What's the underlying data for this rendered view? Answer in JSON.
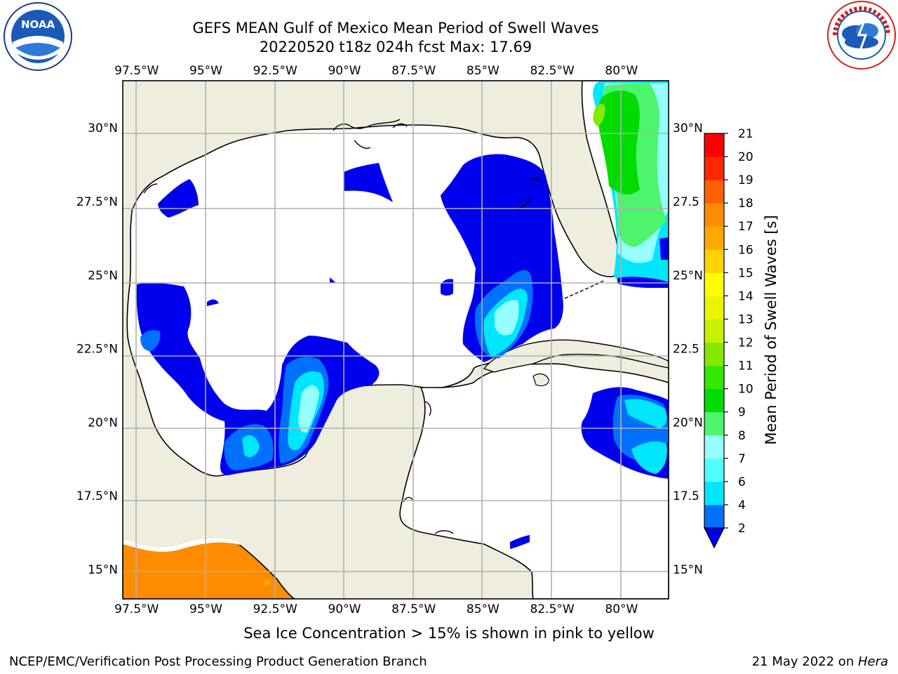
{
  "header": {
    "title_line_1": "GEFS MEAN Gulf of Mexico Mean Period of Swell Waves",
    "title_line_2": "20220520 t18z 024h fcst   Max: 17.69"
  },
  "map": {
    "region": "Gulf of Mexico",
    "lon_ticks": [
      "97.5°W",
      "95°W",
      "92.5°W",
      "90°W",
      "87.5°W",
      "85°W",
      "82.5°W",
      "80°W"
    ],
    "lon_values": [
      -97.5,
      -95,
      -92.5,
      -90,
      -87.5,
      -85,
      -82.5,
      -80
    ],
    "lat_ticks_left": [
      "30°N",
      "27.5°N",
      "25°N",
      "22.5°N",
      "20°N",
      "17.5°N",
      "15°N"
    ],
    "lat_ticks_right": [
      "30°N",
      "27.5",
      "25°N",
      "22.5",
      "20°N",
      "17.5",
      "15°N"
    ],
    "lat_values": [
      30,
      27.5,
      25,
      22.5,
      20,
      17.5,
      15
    ],
    "lon_range": [
      -98,
      -78.3
    ],
    "lat_range": [
      14,
      31.6
    ],
    "grid": true,
    "land_color": "#efedde",
    "ocean_color": "#ffffff"
  },
  "colorbar": {
    "label": "Mean Period of Swell Waves [s]",
    "levels": [
      "2",
      "4",
      "6",
      "7",
      "8",
      "9",
      "10",
      "11",
      "12",
      "13",
      "14",
      "15",
      "16",
      "17",
      "18",
      "19",
      "20",
      "21"
    ],
    "colors": [
      "#0000ee",
      "#0070ff",
      "#00e6ff",
      "#50ffff",
      "#96ffff",
      "#4cf56c",
      "#00dc00",
      "#34e800",
      "#84e800",
      "#c8f000",
      "#eaf400",
      "#ffff00",
      "#ffd200",
      "#ffaa00",
      "#ff8c00",
      "#ff6000",
      "#ff2800",
      "#ff0000"
    ],
    "extend": "min",
    "under_color": "#0000ee"
  },
  "sea_ice_note": "Sea Ice Concentration > 15% is shown in pink to yellow",
  "footer": {
    "left": "NCEP/EMC/Verification Post Processing Product Generation Branch",
    "right_prefix": "21 May 2022 on ",
    "right_machine": "Hera"
  },
  "logos": {
    "left": "NOAA",
    "right_ring_text": "NATIONAL WEATHER SERVICE"
  }
}
